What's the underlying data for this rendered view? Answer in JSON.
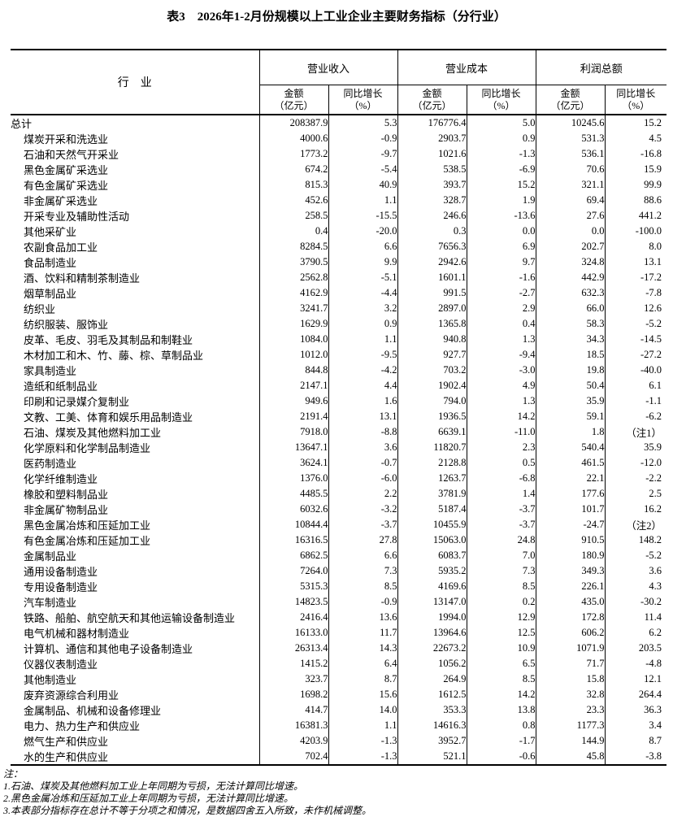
{
  "page_title": "表3　2026年1-2月份规模以上工业企业主要财务指标（分行业）",
  "colors": {
    "background": "#ffffff",
    "text": "#000000",
    "border": "#000000"
  },
  "table": {
    "industry_header": "行　业",
    "group_headers": [
      "营业收入",
      "营业成本",
      "利润总额"
    ],
    "sub_headers": {
      "amount": [
        "金额",
        "（亿元）"
      ],
      "growth": [
        "同比增长",
        "（%）"
      ]
    },
    "rows": [
      {
        "industry": "总计",
        "indent": false,
        "values": [
          "208387.9",
          "5.3",
          "176776.4",
          "5.0",
          "10245.6",
          "15.2"
        ]
      },
      {
        "industry": "煤炭开采和洗选业",
        "indent": true,
        "values": [
          "4000.6",
          "-0.9",
          "2903.7",
          "0.9",
          "531.3",
          "4.5"
        ]
      },
      {
        "industry": "石油和天然气开采业",
        "indent": true,
        "values": [
          "1773.2",
          "-9.7",
          "1021.6",
          "-1.3",
          "536.1",
          "-16.8"
        ]
      },
      {
        "industry": "黑色金属矿采选业",
        "indent": true,
        "values": [
          "674.2",
          "-5.4",
          "538.5",
          "-6.9",
          "70.6",
          "15.9"
        ]
      },
      {
        "industry": "有色金属矿采选业",
        "indent": true,
        "values": [
          "815.3",
          "40.9",
          "393.7",
          "15.2",
          "321.1",
          "99.9"
        ]
      },
      {
        "industry": "非金属矿采选业",
        "indent": true,
        "values": [
          "452.6",
          "1.1",
          "328.7",
          "1.9",
          "69.4",
          "88.6"
        ]
      },
      {
        "industry": "开采专业及辅助性活动",
        "indent": true,
        "values": [
          "258.5",
          "-15.5",
          "246.6",
          "-13.6",
          "27.6",
          "441.2"
        ]
      },
      {
        "industry": "其他采矿业",
        "indent": true,
        "values": [
          "0.4",
          "-20.0",
          "0.3",
          "0.0",
          "0.0",
          "-100.0"
        ]
      },
      {
        "industry": "农副食品加工业",
        "indent": true,
        "values": [
          "8284.5",
          "6.6",
          "7656.3",
          "6.9",
          "202.7",
          "8.0"
        ]
      },
      {
        "industry": "食品制造业",
        "indent": true,
        "values": [
          "3790.5",
          "9.9",
          "2942.6",
          "9.7",
          "324.8",
          "13.1"
        ]
      },
      {
        "industry": "酒、饮料和精制茶制造业",
        "indent": true,
        "values": [
          "2562.8",
          "-5.1",
          "1601.1",
          "-1.6",
          "442.9",
          "-17.2"
        ]
      },
      {
        "industry": "烟草制品业",
        "indent": true,
        "values": [
          "4162.9",
          "-4.4",
          "991.5",
          "-2.7",
          "632.3",
          "-7.8"
        ]
      },
      {
        "industry": "纺织业",
        "indent": true,
        "values": [
          "3241.7",
          "3.2",
          "2897.0",
          "2.9",
          "66.0",
          "12.6"
        ]
      },
      {
        "industry": "纺织服装、服饰业",
        "indent": true,
        "values": [
          "1629.9",
          "0.9",
          "1365.8",
          "0.4",
          "58.3",
          "-5.2"
        ]
      },
      {
        "industry": "皮革、毛皮、羽毛及其制品和制鞋业",
        "indent": true,
        "values": [
          "1084.0",
          "1.1",
          "940.8",
          "1.3",
          "34.3",
          "-14.5"
        ]
      },
      {
        "industry": "木材加工和木、竹、藤、棕、草制品业",
        "indent": true,
        "values": [
          "1012.0",
          "-9.5",
          "927.7",
          "-9.4",
          "18.5",
          "-27.2"
        ]
      },
      {
        "industry": "家具制造业",
        "indent": true,
        "values": [
          "844.8",
          "-4.2",
          "703.2",
          "-3.0",
          "19.8",
          "-40.0"
        ]
      },
      {
        "industry": "造纸和纸制品业",
        "indent": true,
        "values": [
          "2147.1",
          "4.4",
          "1902.4",
          "4.9",
          "50.4",
          "6.1"
        ]
      },
      {
        "industry": "印刷和记录媒介复制业",
        "indent": true,
        "values": [
          "949.6",
          "1.6",
          "794.0",
          "1.3",
          "35.9",
          "-1.1"
        ]
      },
      {
        "industry": "文教、工美、体育和娱乐用品制造业",
        "indent": true,
        "values": [
          "2191.4",
          "13.1",
          "1936.5",
          "14.2",
          "59.1",
          "-6.2"
        ]
      },
      {
        "industry": "石油、煤炭及其他燃料加工业",
        "indent": true,
        "values": [
          "7918.0",
          "-8.8",
          "6639.1",
          "-11.0",
          "1.8",
          "（注1）"
        ]
      },
      {
        "industry": "化学原料和化学制品制造业",
        "indent": true,
        "values": [
          "13647.1",
          "3.6",
          "11820.7",
          "2.3",
          "540.4",
          "35.9"
        ]
      },
      {
        "industry": "医药制造业",
        "indent": true,
        "values": [
          "3624.1",
          "-0.7",
          "2128.8",
          "0.5",
          "461.5",
          "-12.0"
        ]
      },
      {
        "industry": "化学纤维制造业",
        "indent": true,
        "values": [
          "1376.0",
          "-6.0",
          "1263.7",
          "-6.8",
          "22.1",
          "-2.2"
        ]
      },
      {
        "industry": "橡胶和塑料制品业",
        "indent": true,
        "values": [
          "4485.5",
          "2.2",
          "3781.9",
          "1.4",
          "177.6",
          "2.5"
        ]
      },
      {
        "industry": "非金属矿物制品业",
        "indent": true,
        "values": [
          "6032.6",
          "-3.2",
          "5187.4",
          "-3.7",
          "101.7",
          "16.2"
        ]
      },
      {
        "industry": "黑色金属冶炼和压延加工业",
        "indent": true,
        "values": [
          "10844.4",
          "-3.7",
          "10455.9",
          "-3.7",
          "-24.7",
          "（注2）"
        ]
      },
      {
        "industry": "有色金属冶炼和压延加工业",
        "indent": true,
        "values": [
          "16316.5",
          "27.8",
          "15063.0",
          "24.8",
          "910.5",
          "148.2"
        ]
      },
      {
        "industry": "金属制品业",
        "indent": true,
        "values": [
          "6862.5",
          "6.6",
          "6083.7",
          "7.0",
          "180.9",
          "-5.2"
        ]
      },
      {
        "industry": "通用设备制造业",
        "indent": true,
        "values": [
          "7264.0",
          "7.3",
          "5935.2",
          "7.3",
          "349.3",
          "3.6"
        ]
      },
      {
        "industry": "专用设备制造业",
        "indent": true,
        "values": [
          "5315.3",
          "8.5",
          "4169.6",
          "8.5",
          "226.1",
          "4.3"
        ]
      },
      {
        "industry": "汽车制造业",
        "indent": true,
        "values": [
          "14823.5",
          "-0.9",
          "13147.0",
          "0.2",
          "435.0",
          "-30.2"
        ]
      },
      {
        "industry": "铁路、船舶、航空航天和其他运输设备制造业",
        "indent": true,
        "values": [
          "2416.4",
          "13.6",
          "1994.0",
          "12.9",
          "172.8",
          "11.4"
        ]
      },
      {
        "industry": "电气机械和器材制造业",
        "indent": true,
        "values": [
          "16133.0",
          "11.7",
          "13964.6",
          "12.5",
          "606.2",
          "6.2"
        ]
      },
      {
        "industry": "计算机、通信和其他电子设备制造业",
        "indent": true,
        "values": [
          "26313.4",
          "14.3",
          "22673.2",
          "10.9",
          "1071.9",
          "203.5"
        ]
      },
      {
        "industry": "仪器仪表制造业",
        "indent": true,
        "values": [
          "1415.2",
          "6.4",
          "1056.2",
          "6.5",
          "71.7",
          "-4.8"
        ]
      },
      {
        "industry": "其他制造业",
        "indent": true,
        "values": [
          "323.7",
          "8.7",
          "264.9",
          "8.5",
          "15.8",
          "12.1"
        ]
      },
      {
        "industry": "废弃资源综合利用业",
        "indent": true,
        "values": [
          "1698.2",
          "15.6",
          "1612.5",
          "14.2",
          "32.8",
          "264.4"
        ]
      },
      {
        "industry": "金属制品、机械和设备修理业",
        "indent": true,
        "values": [
          "414.7",
          "14.0",
          "353.3",
          "13.8",
          "23.3",
          "36.3"
        ]
      },
      {
        "industry": "电力、热力生产和供应业",
        "indent": true,
        "values": [
          "16381.3",
          "1.1",
          "14616.3",
          "0.8",
          "1177.3",
          "3.4"
        ]
      },
      {
        "industry": "燃气生产和供应业",
        "indent": true,
        "values": [
          "4203.9",
          "-1.3",
          "3952.7",
          "-1.7",
          "144.9",
          "8.7"
        ]
      },
      {
        "industry": "水的生产和供应业",
        "indent": true,
        "values": [
          "702.4",
          "-1.3",
          "521.1",
          "-0.6",
          "45.8",
          "-3.8"
        ]
      }
    ]
  },
  "notes": {
    "label": "注：",
    "items": [
      "1.石油、煤炭及其他燃料加工业上年同期为亏损，无法计算同比增速。",
      "2.黑色金属冶炼和压延加工业上年同期为亏损，无法计算同比增速。",
      "3.本表部分指标存在总计不等于分项之和情况，是数据四舍五入所致，未作机械调整。"
    ]
  }
}
